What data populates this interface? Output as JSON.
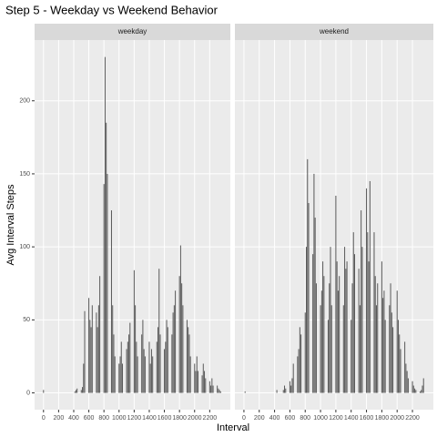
{
  "chart_data": {
    "type": "bar",
    "title": "Step 5 - Weekday vs Weekend Behavior",
    "x_label": "Interval",
    "y_label": "Avg Interval Steps",
    "color": "#595959",
    "grid": true,
    "x": [
      0,
      15,
      30,
      45,
      100,
      115,
      130,
      145,
      200,
      215,
      230,
      245,
      300,
      315,
      330,
      345,
      400,
      415,
      430,
      445,
      500,
      515,
      530,
      545,
      600,
      615,
      630,
      645,
      700,
      715,
      730,
      745,
      800,
      815,
      830,
      845,
      900,
      915,
      930,
      945,
      1000,
      1015,
      1030,
      1045,
      1100,
      1115,
      1130,
      1145,
      1200,
      1215,
      1230,
      1245,
      1300,
      1315,
      1330,
      1345,
      1400,
      1415,
      1430,
      1445,
      1500,
      1515,
      1530,
      1545,
      1600,
      1615,
      1630,
      1645,
      1700,
      1715,
      1730,
      1745,
      1800,
      1815,
      1830,
      1845,
      1900,
      1915,
      1930,
      1945,
      2000,
      2015,
      2030,
      2045,
      2100,
      2115,
      2130,
      2145,
      2200,
      2215,
      2230,
      2245,
      2300,
      2315,
      2330,
      2345
    ],
    "series": [
      {
        "name": "weekday",
        "values": [
          2,
          0,
          0,
          0,
          0,
          0,
          0,
          0,
          0,
          0,
          0,
          0,
          0,
          0,
          0,
          0,
          0,
          1,
          2,
          3,
          2,
          4,
          20,
          56,
          65,
          50,
          45,
          60,
          55,
          45,
          60,
          80,
          143,
          230,
          185,
          150,
          125,
          60,
          40,
          25,
          20,
          25,
          35,
          20,
          30,
          35,
          40,
          48,
          84,
          60,
          35,
          25,
          40,
          50,
          30,
          25,
          35,
          20,
          30,
          25,
          35,
          45,
          85,
          40,
          30,
          35,
          50,
          45,
          40,
          55,
          60,
          70,
          80,
          101,
          75,
          60,
          50,
          45,
          40,
          25,
          20,
          15,
          25,
          15,
          12,
          20,
          15,
          10,
          8,
          5,
          10,
          5,
          5,
          3,
          2,
          1
        ]
      },
      {
        "name": "weekend",
        "values": [
          0,
          1,
          0,
          0,
          0,
          0,
          0,
          0,
          0,
          0,
          0,
          0,
          0,
          0,
          0,
          0,
          0,
          0,
          2,
          0,
          0,
          2,
          5,
          3,
          8,
          5,
          10,
          20,
          25,
          30,
          45,
          40,
          55,
          100,
          160,
          130,
          95,
          150,
          120,
          75,
          60,
          70,
          90,
          80,
          50,
          75,
          100,
          60,
          135,
          90,
          70,
          80,
          60,
          100,
          85,
          90,
          50,
          75,
          110,
          95,
          85,
          60,
          125,
          100,
          140,
          110,
          90,
          145,
          110,
          80,
          60,
          75,
          90,
          65,
          70,
          50,
          60,
          75,
          55,
          45,
          70,
          50,
          40,
          30,
          35,
          20,
          15,
          10,
          8,
          5,
          3,
          2,
          1,
          2,
          5,
          10
        ]
      }
    ],
    "xlim": [
      -118,
      2473
    ],
    "xticks": [
      0,
      200,
      400,
      600,
      800,
      1000,
      1200,
      1400,
      1600,
      1800,
      2000,
      2200
    ],
    "ylim": [
      -11.5,
      241.6
    ],
    "yticks": [
      0,
      50,
      100,
      150,
      200
    ]
  }
}
